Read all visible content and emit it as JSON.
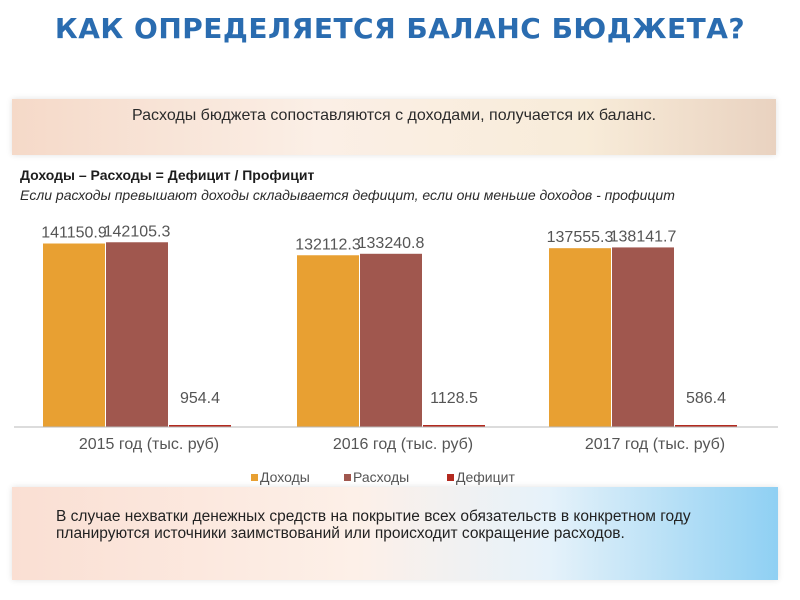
{
  "slide": {
    "title": "КАК ОПРЕДЕЛЯЕТСЯ БАЛАНС БЮДЖЕТА?",
    "intro": "Расходы бюджета сопоставляются с доходами, получается их баланс.",
    "formula": "Доходы – Расходы = Дефицит / Профицит",
    "formula_note": "Если расходы превышают доходы складывается дефицит, если они меньше доходов - профицит",
    "bottom_note": "В случае нехватки денежных средств на покрытие всех обязательств в конкретном году планируются источники заимствований или происходит сокращение расходов."
  },
  "colors": {
    "title": "#2a6cb0",
    "income": "#e8a032",
    "expense": "#a0574e",
    "deficit": "#b32a1f"
  },
  "chart_data": {
    "type": "bar",
    "categories": [
      "2015 год (тыс. руб)",
      "2016 год (тыс. руб)",
      "2017 год (тыс. руб)"
    ],
    "series": [
      {
        "name": "Доходы",
        "values": [
          141150.9,
          132112.3,
          137555.3
        ],
        "labels": [
          "141150.9",
          "132112.3",
          "137555.3"
        ]
      },
      {
        "name": "Расходы",
        "values": [
          142105.3,
          133240.8,
          138141.7
        ],
        "labels": [
          "142105.3",
          "133240.8",
          "138141.7"
        ]
      },
      {
        "name": "Дефицит",
        "values": [
          954.4,
          1128.5,
          586.4
        ],
        "labels": [
          "954.4",
          "1128.5",
          "586.4"
        ]
      }
    ],
    "ylim": [
      0,
      160000
    ],
    "grid": false,
    "legend_position": "bottom"
  }
}
